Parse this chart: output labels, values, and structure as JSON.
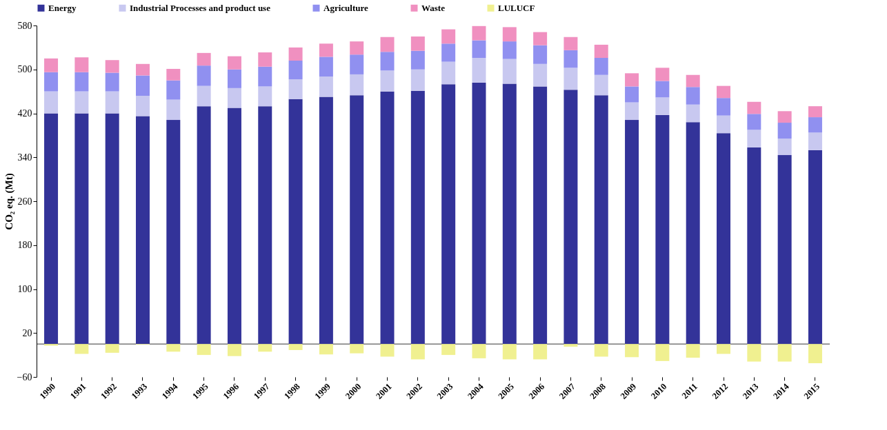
{
  "chart_data": {
    "type": "bar",
    "stacked": true,
    "ylabel": "CO₂ eq. (Mt)",
    "categories": [
      "1990",
      "1991",
      "1992",
      "1993",
      "1994",
      "1995",
      "1996",
      "1997",
      "1998",
      "1999",
      "2000",
      "2001",
      "2002",
      "2003",
      "2004",
      "2005",
      "2006",
      "2007",
      "2008",
      "2009",
      "2010",
      "2011",
      "2012",
      "2013",
      "2014",
      "2015"
    ],
    "series": [
      {
        "name": "Energy",
        "color": "#333399",
        "values": [
          420,
          420,
          420,
          415,
          408,
          433,
          430,
          433,
          446,
          450,
          453,
          460,
          461,
          473,
          476,
          474,
          469,
          463,
          453,
          408,
          417,
          404,
          384,
          358,
          344,
          353
        ]
      },
      {
        "name": "Industrial Processes and product use",
        "color": "#c8c8f0",
        "values": [
          40,
          40,
          40,
          37,
          37,
          37,
          36,
          36,
          36,
          37,
          38,
          38,
          39,
          41,
          45,
          45,
          41,
          40,
          37,
          32,
          32,
          32,
          32,
          32,
          30,
          32
        ]
      },
      {
        "name": "Agriculture",
        "color": "#9090f0",
        "values": [
          35,
          35,
          34,
          37,
          35,
          37,
          34,
          36,
          34,
          36,
          36,
          34,
          34,
          33,
          32,
          32,
          34,
          32,
          31,
          29,
          30,
          32,
          32,
          29,
          29,
          28
        ]
      },
      {
        "name": "Waste",
        "color": "#f090c0",
        "values": [
          25,
          27,
          23,
          21,
          21,
          23,
          24,
          26,
          24,
          24,
          24,
          27,
          26,
          26,
          26,
          26,
          24,
          24,
          24,
          24,
          24,
          22,
          22,
          22,
          21,
          20
        ]
      },
      {
        "name": "LULUCF",
        "color": "#f0f090",
        "values": [
          -3,
          -18,
          -16,
          -1,
          -14,
          -20,
          -22,
          -14,
          -11,
          -19,
          -17,
          -23,
          -28,
          -20,
          -26,
          -28,
          -28,
          -5,
          -23,
          -24,
          -31,
          -25,
          -18,
          -32,
          -32,
          -35
        ]
      }
    ],
    "ylim": [
      -60,
      580
    ],
    "yticks": [
      -60,
      20,
      100,
      180,
      260,
      340,
      420,
      500,
      580
    ],
    "grid": false,
    "legend": "top"
  }
}
